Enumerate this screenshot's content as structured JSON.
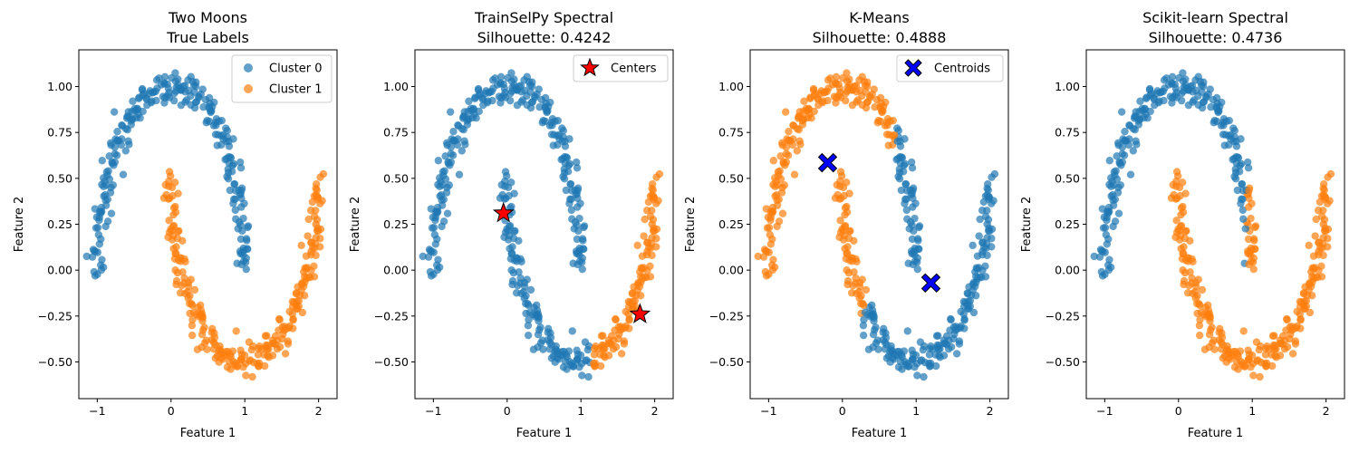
{
  "colors": {
    "cluster0": "#1f77b4",
    "cluster1": "#ff7f0e",
    "center_star": "#ff0000",
    "centroid_x": "#0000ff"
  },
  "chart_data": [
    {
      "type": "scatter",
      "title_line1": "Two Moons",
      "title_line2": "True Labels",
      "xlabel": "Feature 1",
      "ylabel": "Feature 2",
      "xlim": [
        -1.25,
        2.25
      ],
      "ylim": [
        -0.7,
        1.2
      ],
      "xticks": [
        -1,
        0,
        1,
        2
      ],
      "yticks": [
        -0.5,
        -0.25,
        0.0,
        0.25,
        0.5,
        0.75,
        1.0
      ],
      "yticklabels": [
        "−0.50",
        "−0.25",
        "0.00",
        "0.25",
        "0.50",
        "0.75",
        "1.00"
      ],
      "xticklabels": [
        "−1",
        "0",
        "1",
        "2"
      ],
      "legend": {
        "location": "top-right",
        "entries": [
          {
            "label": "Cluster 0",
            "marker": "circle",
            "color": "#1f77b4"
          },
          {
            "label": "Cluster 1",
            "marker": "circle",
            "color": "#ff7f0e"
          }
        ]
      },
      "grid": false,
      "coloring": "true",
      "markers": []
    },
    {
      "type": "scatter",
      "title_line1": "TrainSelPy Spectral",
      "title_line2": "Silhouette: 0.4242",
      "xlabel": "Feature 1",
      "ylabel": "Feature 2",
      "xlim": [
        -1.25,
        2.25
      ],
      "ylim": [
        -0.7,
        1.2
      ],
      "xticks": [
        -1,
        0,
        1,
        2
      ],
      "yticks": [
        -0.5,
        -0.25,
        0.0,
        0.25,
        0.5,
        0.75,
        1.0
      ],
      "yticklabels": [
        "−0.50",
        "−0.25",
        "0.00",
        "0.25",
        "0.50",
        "0.75",
        "1.00"
      ],
      "xticklabels": [
        "−1",
        "0",
        "1",
        "2"
      ],
      "legend": {
        "location": "top-right",
        "entries": [
          {
            "label": "Centers",
            "marker": "star",
            "color": "#ff0000"
          }
        ]
      },
      "grid": false,
      "coloring": "trainselpy",
      "markers": [
        {
          "shape": "star",
          "x": -0.05,
          "y": 0.31,
          "color": "#ff0000"
        },
        {
          "shape": "star",
          "x": 1.8,
          "y": -0.24,
          "color": "#ff0000"
        }
      ]
    },
    {
      "type": "scatter",
      "title_line1": "K-Means",
      "title_line2": "Silhouette: 0.4888",
      "xlabel": "Feature 1",
      "ylabel": "Feature 2",
      "xlim": [
        -1.25,
        2.25
      ],
      "ylim": [
        -0.7,
        1.2
      ],
      "xticks": [
        -1,
        0,
        1,
        2
      ],
      "yticks": [
        -0.5,
        -0.25,
        0.0,
        0.25,
        0.5,
        0.75,
        1.0
      ],
      "yticklabels": [
        "−0.50",
        "−0.25",
        "0.00",
        "0.25",
        "0.50",
        "0.75",
        "1.00"
      ],
      "xticklabels": [
        "−1",
        "0",
        "1",
        "2"
      ],
      "legend": {
        "location": "top-right",
        "entries": [
          {
            "label": "Centroids",
            "marker": "x",
            "color": "#0000ff"
          }
        ]
      },
      "grid": false,
      "coloring": "kmeans",
      "markers": [
        {
          "shape": "x",
          "x": -0.2,
          "y": 0.585,
          "color": "#0000ff"
        },
        {
          "shape": "x",
          "x": 1.2,
          "y": -0.07,
          "color": "#0000ff"
        }
      ]
    },
    {
      "type": "scatter",
      "title_line1": "Scikit-learn Spectral",
      "title_line2": "Silhouette: 0.4736",
      "xlabel": "Feature 1",
      "ylabel": "Feature 2",
      "xlim": [
        -1.25,
        2.25
      ],
      "ylim": [
        -0.7,
        1.2
      ],
      "xticks": [
        -1,
        0,
        1,
        2
      ],
      "yticks": [
        -0.5,
        -0.25,
        0.0,
        0.25,
        0.5,
        0.75,
        1.0
      ],
      "yticklabels": [
        "−0.50",
        "−0.25",
        "0.00",
        "0.25",
        "0.50",
        "0.75",
        "1.00"
      ],
      "xticklabels": [
        "−1",
        "0",
        "1",
        "2"
      ],
      "legend": null,
      "grid": false,
      "coloring": "sklearn",
      "markers": []
    }
  ]
}
